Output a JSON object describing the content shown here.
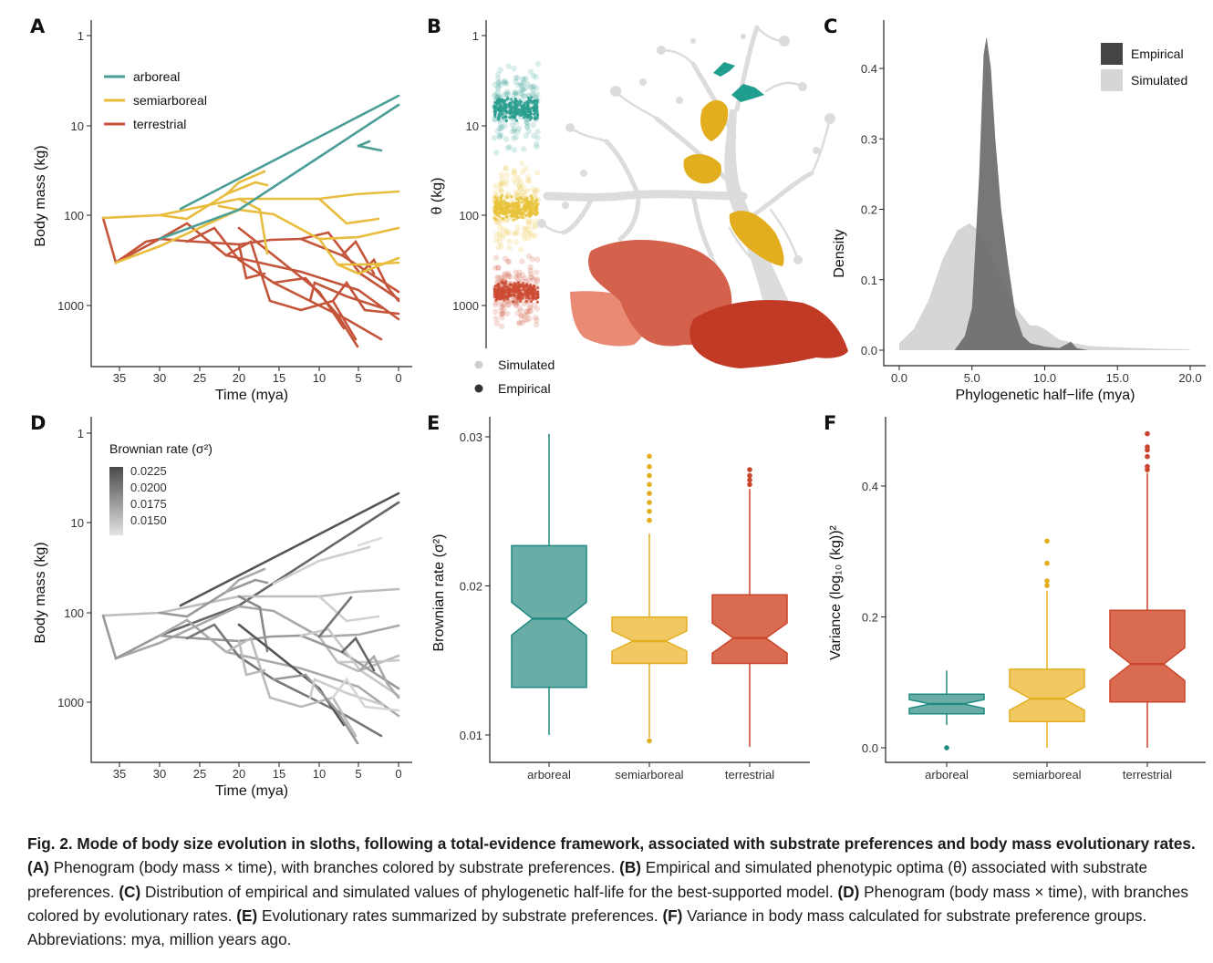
{
  "panels": {
    "A": {
      "label": "A",
      "ylabel": "Body mass (kg)",
      "xlabel": "Time (mya)",
      "yticks": [
        "1",
        "10",
        "100",
        "1000"
      ],
      "xticks": [
        "35",
        "30",
        "25",
        "20",
        "15",
        "10",
        "5",
        "0"
      ],
      "legend": [
        {
          "name": "arboreal",
          "color": "#4a9e96"
        },
        {
          "name": "semiarboreal",
          "color": "#e8bd3e"
        },
        {
          "name": "terrestrial",
          "color": "#c4553a"
        }
      ]
    },
    "B": {
      "label": "B",
      "ylabel": "θ (kg)",
      "yticks": [
        "1",
        "10",
        "100",
        "1000"
      ],
      "legend": [
        {
          "name": "Simulated",
          "color": "#cfcfcf"
        },
        {
          "name": "Empirical",
          "color": "#333333"
        }
      ]
    },
    "C": {
      "label": "C",
      "ylabel": "Density",
      "xlabel": "Phylogenetic half−life (mya)",
      "yticks": [
        "0.0",
        "0.1",
        "0.2",
        "0.3",
        "0.4"
      ],
      "xticks": [
        "0.0",
        "5.0",
        "10.0",
        "15.0",
        "20.0"
      ],
      "legend": [
        {
          "name": "Empirical",
          "color": "#444444"
        },
        {
          "name": "Simulated",
          "color": "#d6d6d6"
        }
      ]
    },
    "D": {
      "label": "D",
      "ylabel": "Body mass (kg)",
      "xlabel": "Time (mya)",
      "yticks": [
        "1",
        "10",
        "100",
        "1000"
      ],
      "xticks": [
        "35",
        "30",
        "25",
        "20",
        "15",
        "10",
        "5",
        "0"
      ],
      "legend_title": "Brownian rate (σ²)",
      "legend_values": [
        "0.0225",
        "0.0200",
        "0.0175",
        "0.0150"
      ]
    },
    "E": {
      "label": "E",
      "ylabel": "Brownian rate (σ²)",
      "yticks": [
        "0.01",
        "0.02",
        "0.03"
      ],
      "categories": [
        "arboreal",
        "semiarboreal",
        "terrestrial"
      ]
    },
    "F": {
      "label": "F",
      "ylabel": "Variance (log₁₀ (kg))²",
      "yticks": [
        "0.0",
        "0.2",
        "0.4"
      ],
      "categories": [
        "arboreal",
        "semiarboreal",
        "terrestrial"
      ]
    }
  },
  "chart_data": [
    {
      "panel": "C",
      "type": "area",
      "x_range": [
        0,
        20
      ],
      "y_range": [
        0,
        0.45
      ],
      "series": [
        {
          "name": "Simulated",
          "x": [
            0,
            1,
            2,
            3,
            4,
            4.8,
            5.5,
            6,
            7,
            8,
            9,
            9.5,
            10,
            11,
            12,
            13,
            15,
            18,
            20
          ],
          "y": [
            0.01,
            0.03,
            0.07,
            0.13,
            0.17,
            0.18,
            0.17,
            0.15,
            0.1,
            0.06,
            0.035,
            0.035,
            0.03,
            0.015,
            0.01,
            0.006,
            0.004,
            0.002,
            0.001
          ]
        },
        {
          "name": "Empirical",
          "x": [
            3.8,
            4.5,
            5,
            5.5,
            5.8,
            6,
            6.3,
            6.6,
            7,
            7.5,
            8,
            8.5,
            9,
            10,
            11,
            11.8,
            12.2,
            13
          ],
          "y": [
            0,
            0.02,
            0.06,
            0.25,
            0.42,
            0.445,
            0.4,
            0.3,
            0.2,
            0.12,
            0.05,
            0.02,
            0.01,
            0.005,
            0.003,
            0.012,
            0.003,
            0
          ]
        }
      ]
    },
    {
      "panel": "E",
      "type": "box",
      "categories": [
        "arboreal",
        "semiarboreal",
        "terrestrial"
      ],
      "colors": [
        "#6aada6",
        "#f2c862",
        "#d96b50"
      ],
      "edge_colors": [
        "#1e8a80",
        "#e3ae1e",
        "#c9452b"
      ],
      "y_range": [
        0.0085,
        0.031
      ],
      "boxes": [
        {
          "whisker_low": 0.01,
          "q1": 0.0132,
          "median": 0.0178,
          "q3": 0.0227,
          "whisker_high": 0.0302,
          "outliers": []
        },
        {
          "whisker_low": 0.0098,
          "q1": 0.0148,
          "median": 0.0163,
          "q3": 0.0179,
          "whisker_high": 0.0235,
          "outliers": [
            0.0096,
            0.0244,
            0.025,
            0.0256,
            0.0262,
            0.0268,
            0.0274,
            0.028,
            0.0287
          ]
        },
        {
          "whisker_low": 0.0092,
          "q1": 0.0148,
          "median": 0.0165,
          "q3": 0.0194,
          "whisker_high": 0.0265,
          "outliers": [
            0.0268,
            0.0271,
            0.0274,
            0.0278
          ]
        }
      ]
    },
    {
      "panel": "F",
      "type": "box",
      "categories": [
        "arboreal",
        "semiarboreal",
        "terrestrial"
      ],
      "colors": [
        "#6aada6",
        "#f2c862",
        "#d96b50"
      ],
      "edge_colors": [
        "#1e8a80",
        "#e3ae1e",
        "#c9452b"
      ],
      "y_range": [
        -0.01,
        0.5
      ],
      "boxes": [
        {
          "whisker_low": 0.035,
          "q1": 0.052,
          "median": 0.067,
          "q3": 0.082,
          "whisker_high": 0.118,
          "outliers": [
            0.0
          ]
        },
        {
          "whisker_low": 0.0,
          "q1": 0.04,
          "median": 0.075,
          "q3": 0.12,
          "whisker_high": 0.24,
          "outliers": [
            0.248,
            0.255,
            0.282,
            0.316
          ]
        },
        {
          "whisker_low": 0.0,
          "q1": 0.07,
          "median": 0.128,
          "q3": 0.21,
          "whisker_high": 0.42,
          "outliers": [
            0.425,
            0.43,
            0.445,
            0.455,
            0.46,
            0.48
          ]
        }
      ]
    }
  ],
  "caption": {
    "title": "Fig. 2.  Mode of body size evolution in sloths, following a total-evidence framework, associated with substrate preferences and body mass evolutionary rates.",
    "a_label": "(A)",
    "a_text": " Phenogram (body mass × time), with branches colored by substrate preferences. ",
    "b_label": "(B)",
    "b_text": " Empirical and simulated phenotypic optima (θ) associated with substrate preferences. ",
    "c_label": "(C)",
    "c_text": " Distribution of empirical and simulated values of phylogenetic half-life for the best-supported model. ",
    "d_label": "(D)",
    "d_text": " Phenogram (body mass × time), with branches colored by evolutionary rates. ",
    "e_label": "(E)",
    "e_text": " Evolutionary rates summarized by substrate preferences. ",
    "f_label": "(F)",
    "f_text": " Variance in body mass calculated for substrate preference groups. Abbreviations: mya, million years ago."
  }
}
